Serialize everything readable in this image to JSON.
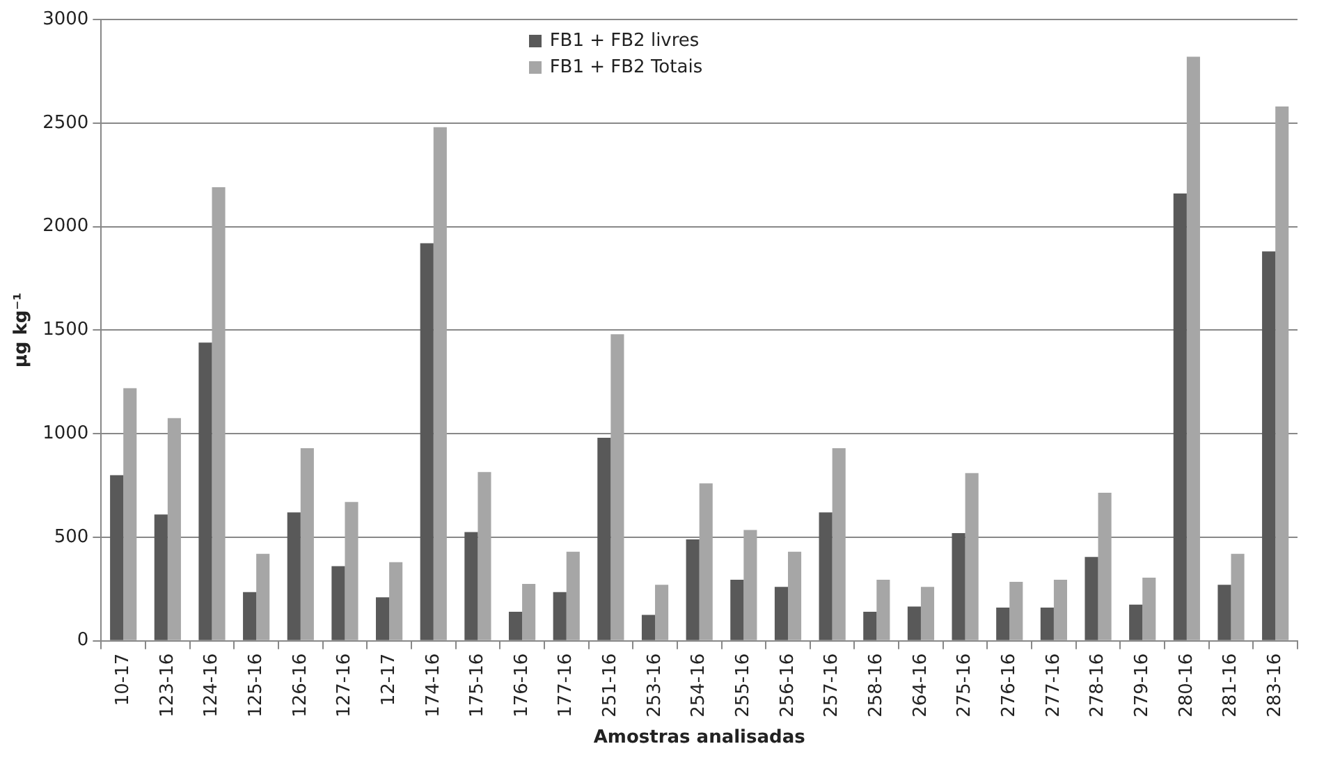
{
  "chart_data": {
    "type": "bar",
    "xlabel": "Amostras analisadas",
    "ylabel": "μg kg⁻¹",
    "categories": [
      "10-17",
      "123-16",
      "124-16",
      "125-16",
      "126-16",
      "127-16",
      "12-17",
      "174-16",
      "175-16",
      "176-16",
      "177-16",
      "251-16",
      "253-16",
      "254-16",
      "255-16",
      "256-16",
      "257-16",
      "258-16",
      "264-16",
      "275-16",
      "276-16",
      "277-16",
      "278-16",
      "279-16",
      "280-16",
      "281-16",
      "283-16"
    ],
    "series": [
      {
        "name": "FB1 + FB2 livres",
        "color": "#595959",
        "values": [
          800,
          610,
          1440,
          235,
          620,
          360,
          210,
          1920,
          525,
          140,
          235,
          980,
          125,
          490,
          295,
          260,
          620,
          140,
          165,
          520,
          160,
          160,
          405,
          175,
          2160,
          270,
          1880
        ]
      },
      {
        "name": "FB1 + FB2 Totais",
        "color": "#a6a6a6",
        "values": [
          1220,
          1075,
          2190,
          420,
          930,
          670,
          380,
          2480,
          815,
          275,
          430,
          1480,
          270,
          760,
          535,
          430,
          930,
          295,
          260,
          810,
          285,
          295,
          715,
          305,
          2820,
          420,
          2580
        ]
      }
    ],
    "ylim": [
      0,
      3000
    ],
    "yticks": [
      0,
      500,
      1000,
      1500,
      2000,
      2500,
      3000
    ],
    "grid": "y",
    "legend": "top"
  }
}
